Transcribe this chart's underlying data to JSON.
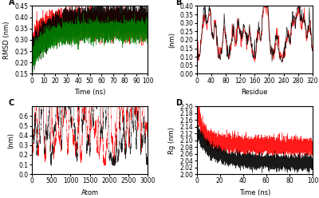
{
  "panel_A": {
    "label": "A",
    "xlabel": "Time (ns)",
    "ylabel": "RMSD (nm)",
    "xlim": [
      0,
      100
    ],
    "ylim": [
      0.15,
      0.45
    ],
    "yticks": [
      0.15,
      0.2,
      0.25,
      0.3,
      0.35,
      0.4,
      0.45
    ],
    "xticks": [
      0,
      10,
      20,
      30,
      40,
      50,
      60,
      70,
      80,
      90,
      100
    ],
    "colors": [
      "red",
      "black",
      "green"
    ]
  },
  "panel_B": {
    "label": "B",
    "xlabel": "Residue",
    "ylabel": "(nm)",
    "xlim": [
      0,
      320
    ],
    "ylim": [
      0,
      0.4
    ],
    "yticks": [
      0,
      0.05,
      0.1,
      0.15,
      0.2,
      0.25,
      0.3,
      0.35,
      0.4
    ],
    "xticks": [
      0,
      40,
      80,
      120,
      160,
      200,
      240,
      280,
      320
    ],
    "colors": [
      "red",
      "black"
    ]
  },
  "panel_C": {
    "label": "C",
    "xlabel": "Atom",
    "ylabel": "(nm)",
    "xlim": [
      0,
      3000
    ],
    "ylim": [
      0,
      0.7
    ],
    "yticks": [
      0,
      0.1,
      0.2,
      0.3,
      0.4,
      0.5,
      0.6
    ],
    "xticks": [
      0,
      500,
      1000,
      1500,
      2000,
      2500,
      3000
    ],
    "colors": [
      "red",
      "black"
    ]
  },
  "panel_D": {
    "label": "D",
    "xlabel": "Time (ns)",
    "ylabel": "Rg (nm)",
    "xlim": [
      0,
      100
    ],
    "ylim": [
      2.0,
      2.2
    ],
    "yticks": [
      2.0,
      2.02,
      2.04,
      2.06,
      2.08,
      2.1,
      2.12,
      2.14,
      2.16,
      2.18,
      2.2
    ],
    "xticks": [
      0,
      20,
      40,
      60,
      80,
      100
    ],
    "colors": [
      "red",
      "black"
    ]
  },
  "bg_color": "white",
  "label_fontsize": 7,
  "tick_fontsize": 5.5,
  "axis_label_fontsize": 6
}
